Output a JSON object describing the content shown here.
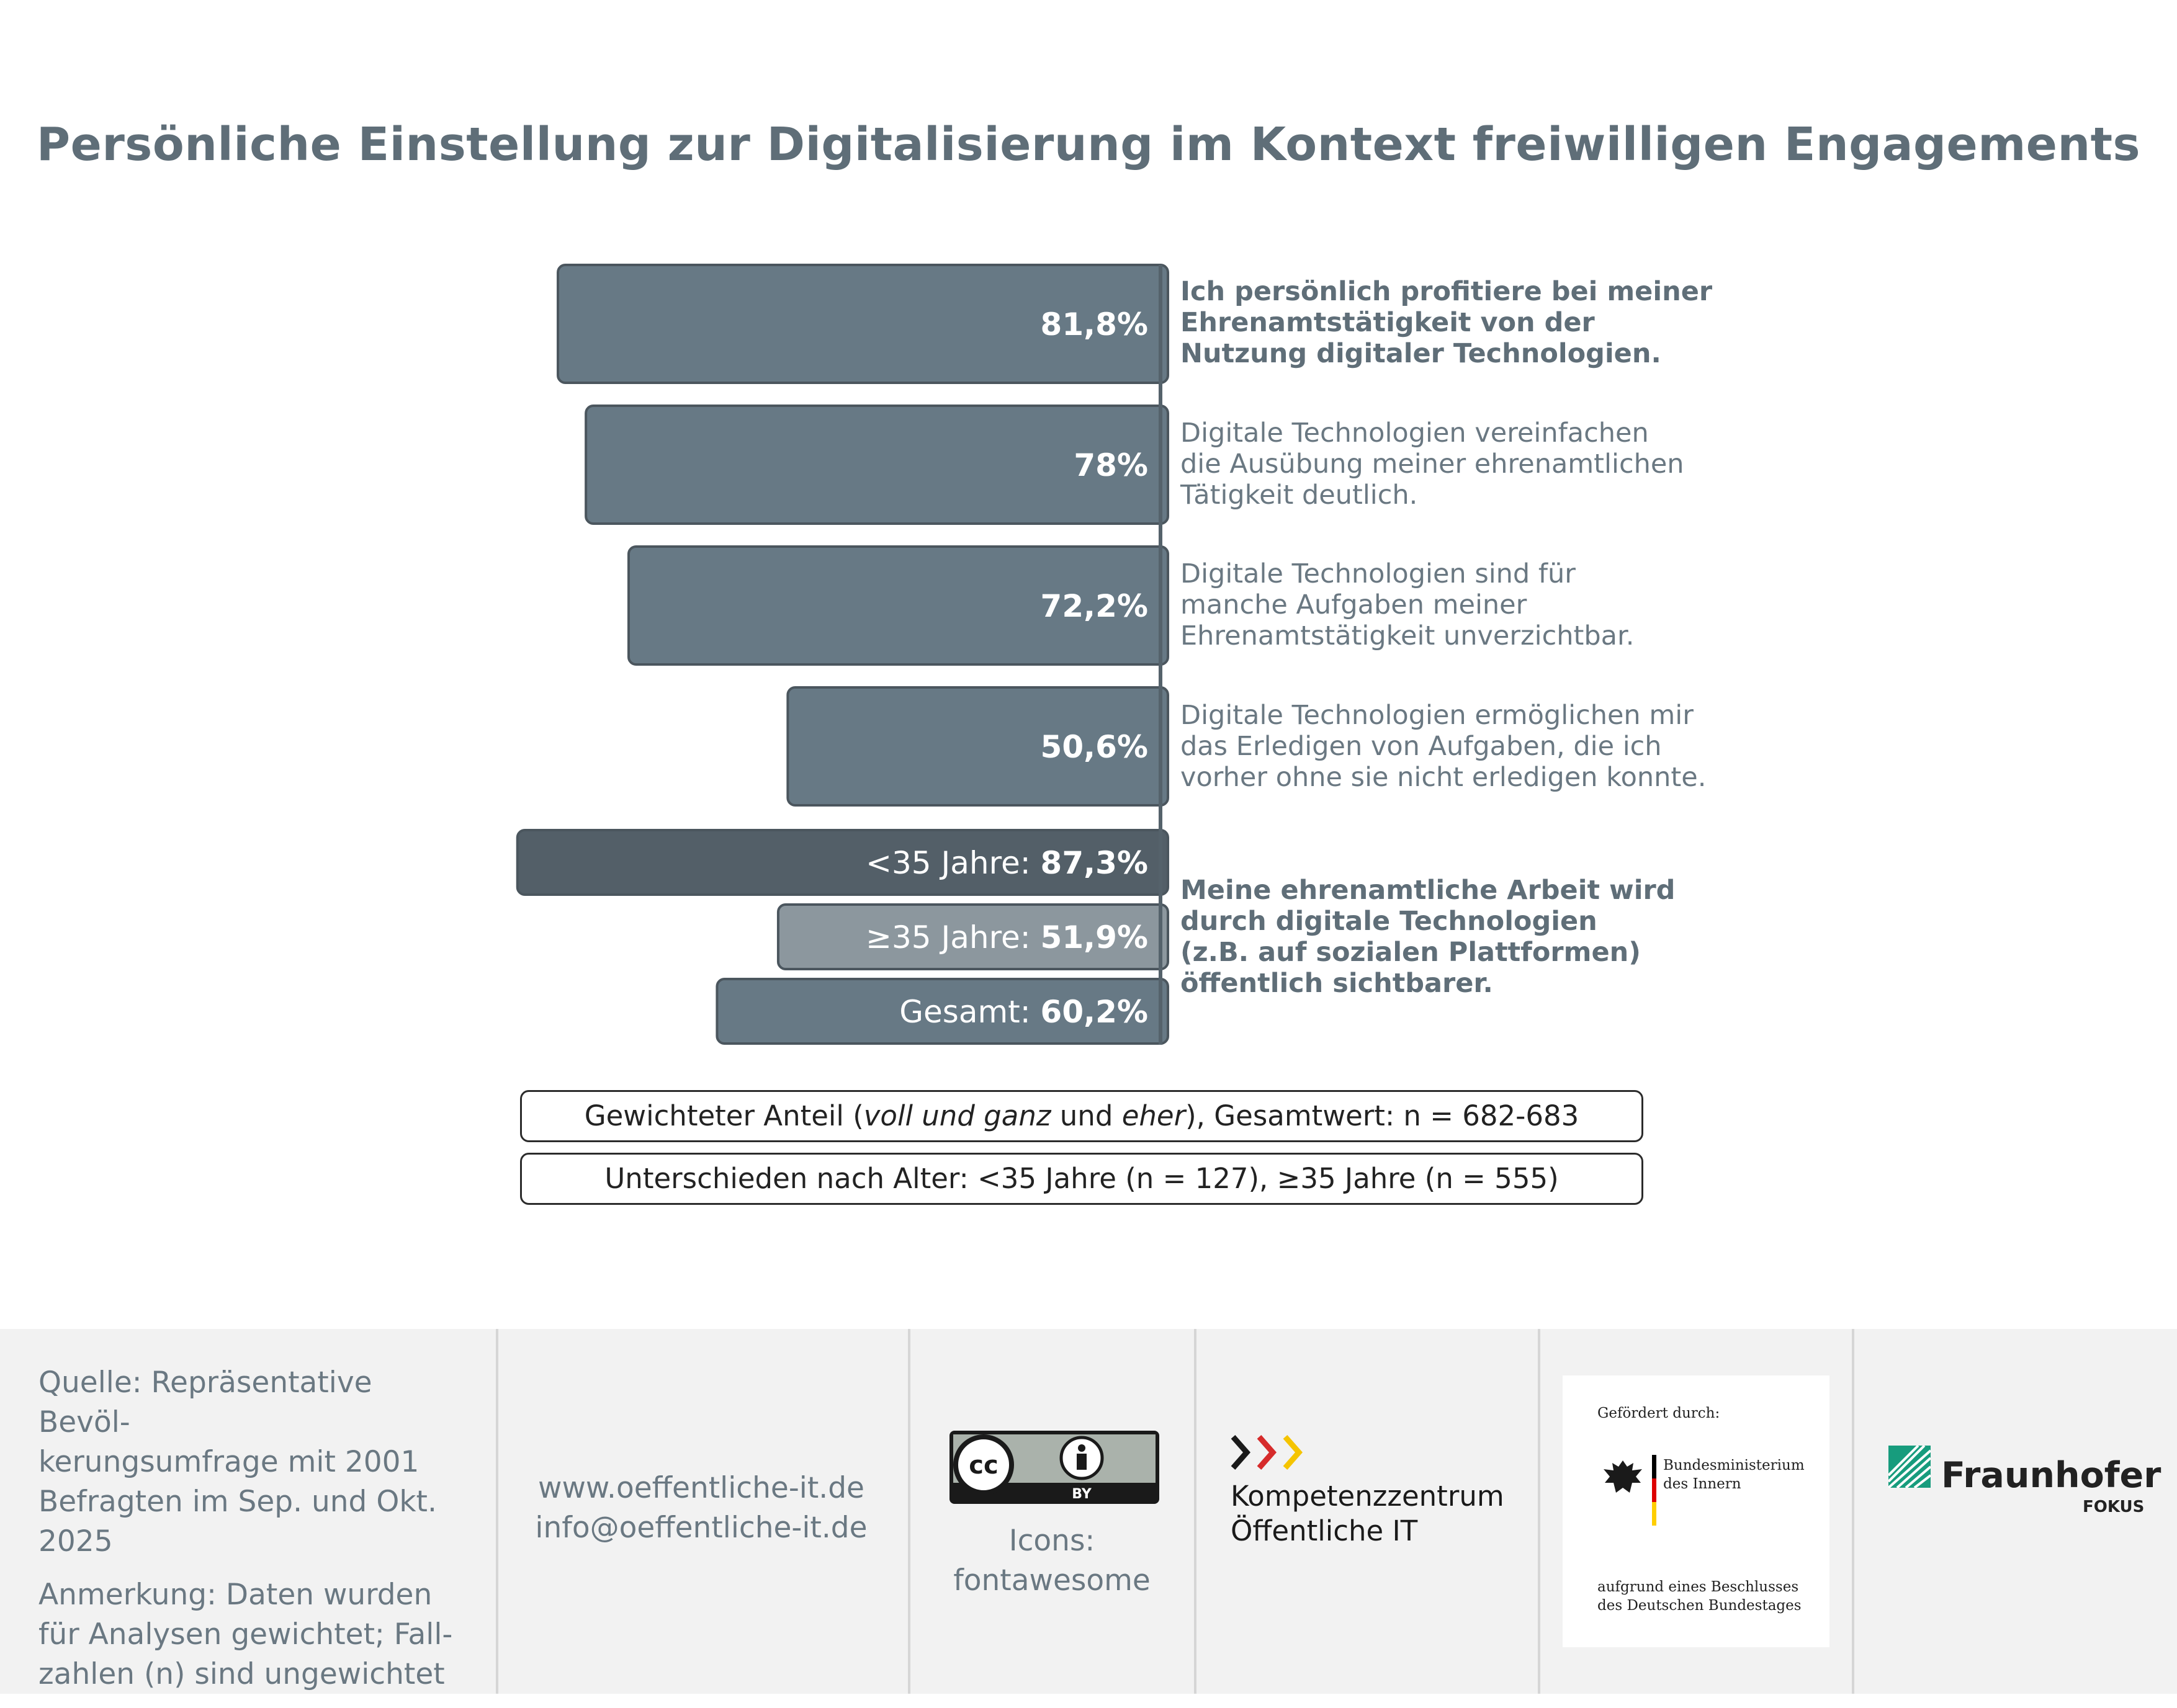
{
  "title": "Persönliche Einstellung zur Digitalisierung im Kontext freiwilligen Engagements",
  "chart_data": {
    "type": "bar",
    "orientation": "horizontal",
    "xlim": [
      0,
      100
    ],
    "bars": [
      {
        "label": "81,8%",
        "value": 81.8,
        "color": "#677985"
      },
      {
        "label": "78%",
        "value": 78.0,
        "color": "#677985"
      },
      {
        "label": "72,2%",
        "value": 72.2,
        "color": "#677985"
      },
      {
        "label": "50,6%",
        "value": 50.6,
        "color": "#677985"
      },
      {
        "prefix": "<35 Jahre: ",
        "label": "87,3%",
        "value": 87.3,
        "color": "#535f68"
      },
      {
        "prefix": "≥35 Jahre: ",
        "label": "51,9%",
        "value": 51.9,
        "color": "#8c979e"
      },
      {
        "prefix": "Gesamt: ",
        "label": "60,2%",
        "value": 60.2,
        "color": "#677985"
      }
    ],
    "statements": [
      {
        "lines": [
          "Ich persönlich profitiere bei meiner",
          "Ehrenamtstätigkeit von der",
          "Nutzung digitaler Technologien."
        ],
        "bold": true
      },
      {
        "lines": [
          "Digitale Technologien vereinfachen",
          "die Ausübung meiner ehrenamtlichen",
          "Tätigkeit deutlich."
        ],
        "bold": false
      },
      {
        "lines": [
          "Digitale Technologien sind für",
          "manche Aufgaben meiner",
          "Ehrenamtstätigkeit unverzichtbar."
        ],
        "bold": false
      },
      {
        "lines": [
          "Digitale Technologien ermöglichen mir",
          "das Erledigen von Aufgaben, die ich",
          "vorher ohne sie nicht erledigen konnte."
        ],
        "bold": false
      },
      {
        "lines": [
          "Meine ehrenamtliche Arbeit wird",
          "durch digitale Technologien",
          "(z.B. auf sozialen Plattformen)",
          "öffentlich sichtbarer."
        ],
        "bold": true
      }
    ]
  },
  "notes": {
    "weighted_before": "Gewichteter Anteil (",
    "weighted_italic1": "voll und ganz",
    "weighted_mid": " und ",
    "weighted_italic2": "eher",
    "weighted_after": "), Gesamtwert: n = 682-683",
    "age": "Unterschieden nach Alter: <35 Jahre (n = 127), ≥35 Jahre (n = 555)"
  },
  "footer": {
    "source_lines": [
      "Quelle: Repräsentative Bevöl-",
      "kerungsumfrage mit 2001",
      "Befragten im Sep. und Okt.",
      "2025"
    ],
    "note_lines": [
      "Anmerkung: Daten wurden",
      "für Analysen gewichtet; Fall-",
      "zahlen (n) sind ungewichtet"
    ],
    "website": "www.oeffentliche-it.de",
    "email": "info@oeffentliche-it.de",
    "license_cc": "cc",
    "license_by": "BY",
    "icons_lines": [
      "Icons:",
      "fontawesome"
    ],
    "kompetenz_lines": [
      "Kompetenzzentrum",
      "Öffentliche IT"
    ],
    "bmi": {
      "funded_by": "Gefördert durch:",
      "ministry_lines": [
        "Bundesministerium",
        "des Innern"
      ],
      "resolution_lines": [
        "aufgrund eines Beschlusses",
        "des Deutschen Bundestages"
      ]
    },
    "fraunhofer": "Fraunhofer",
    "fokus": "FOKUS"
  },
  "colors": {
    "bar": "#677985",
    "bar_young": "#535f68",
    "bar_old": "#8c979e",
    "title": "#5f6e78",
    "footer_bg": "#f2f2f2",
    "fraunhofer_green": "#179c7d"
  }
}
